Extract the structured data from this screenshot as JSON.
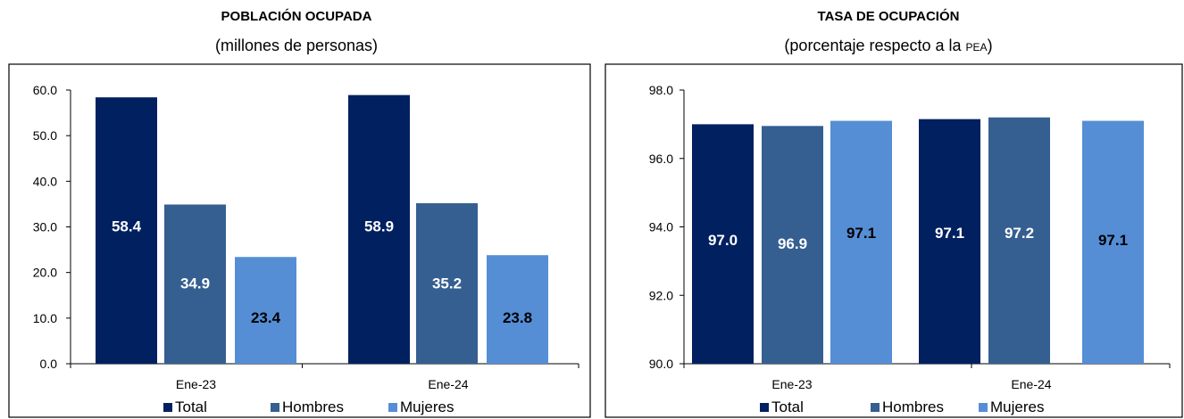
{
  "colors": {
    "total": "#002060",
    "hombres": "#355F91",
    "mujeres": "#558ED5"
  },
  "chart_data": [
    {
      "type": "bar",
      "title": "POBLACIÓN OCUPADA",
      "subtitle": "(millones de personas)",
      "categories": [
        "Ene-23",
        "Ene-24"
      ],
      "series": [
        {
          "name": "Total",
          "values": [
            58.4,
            58.9
          ],
          "labels": [
            "58.4",
            "58.9"
          ]
        },
        {
          "name": "Hombres",
          "values": [
            34.9,
            35.2
          ],
          "labels": [
            "34.9",
            "35.2"
          ]
        },
        {
          "name": "Mujeres",
          "values": [
            23.4,
            23.8
          ],
          "labels": [
            "23.4",
            "23.8"
          ]
        }
      ],
      "ylim": [
        0,
        60
      ],
      "yticks": [
        "0.0",
        "10.0",
        "20.0",
        "30.0",
        "40.0",
        "50.0",
        "60.0"
      ],
      "legend": "bottom"
    },
    {
      "type": "bar",
      "title": "TASA DE OCUPACIÓN",
      "subtitle_main": "(porcentaje respecto a la ",
      "subtitle_small": "PEA",
      "subtitle_end": ")",
      "categories": [
        "Ene-23",
        "Ene-24"
      ],
      "series": [
        {
          "name": "Total",
          "values": [
            97.0,
            97.15
          ],
          "labels": [
            "97.0",
            "97.1"
          ]
        },
        {
          "name": "Hombres",
          "values": [
            96.95,
            97.2
          ],
          "labels": [
            "96.9",
            "97.2"
          ]
        },
        {
          "name": "Mujeres",
          "values": [
            97.1,
            97.1
          ],
          "labels": [
            "97.1",
            "97.1"
          ]
        }
      ],
      "ylim": [
        90,
        98
      ],
      "yticks": [
        "90.0",
        "92.0",
        "94.0",
        "96.0",
        "98.0"
      ],
      "legend": "bottom"
    }
  ]
}
